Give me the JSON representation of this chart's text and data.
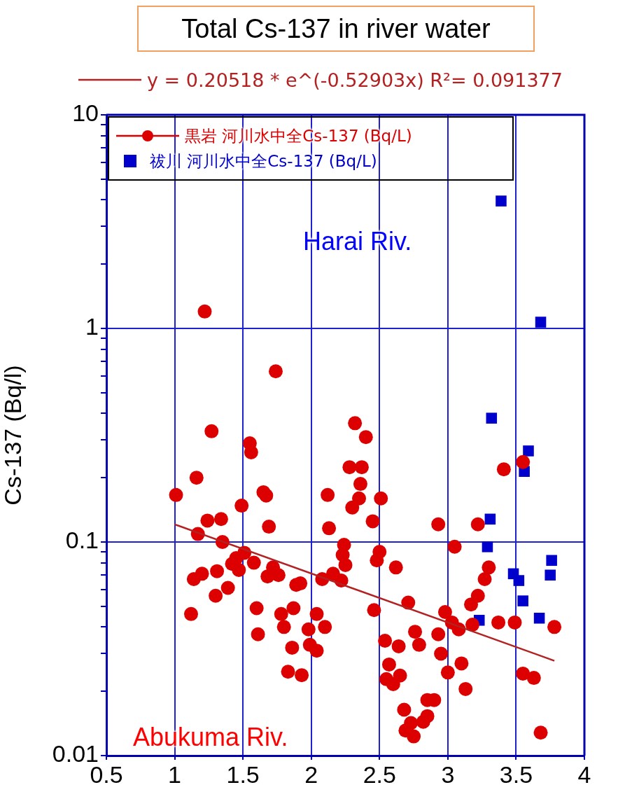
{
  "chart_data": {
    "type": "scatter",
    "title": "Total Cs-137 in river water",
    "ylabel": "Cs-137 (Bq/l)",
    "annotations": [
      "Harai Riv.",
      "Abukuma Riv."
    ],
    "log": "y",
    "grid": true,
    "legend": "top left",
    "xlim": [
      0.5,
      4
    ],
    "xticks": [
      0.5,
      1,
      1.5,
      2,
      2.5,
      3,
      3.5,
      4
    ],
    "ylim": [
      0.01,
      10
    ],
    "yticks": [
      0.01,
      {
        "value": 0.02,
        "label": null
      },
      {
        "value": 0.03,
        "label": null
      },
      {
        "value": 0.04,
        "label": null
      },
      {
        "value": 0.05,
        "label": null
      },
      {
        "value": 0.06,
        "label": null
      },
      {
        "value": 0.07,
        "label": null
      },
      {
        "value": 0.08,
        "label": null
      },
      {
        "value": 0.09,
        "label": null
      },
      0.1,
      {
        "value": 0.2,
        "label": null
      },
      {
        "value": 0.3,
        "label": null
      },
      {
        "value": 0.4,
        "label": null
      },
      {
        "value": 0.5,
        "label": null
      },
      {
        "value": 0.6,
        "label": null
      },
      {
        "value": 0.7,
        "label": null
      },
      {
        "value": 0.8,
        "label": null
      },
      {
        "value": 0.9,
        "label": null
      },
      1,
      {
        "value": 2,
        "label": null
      },
      {
        "value": 3,
        "label": null
      },
      {
        "value": 4,
        "label": null
      },
      {
        "value": 5,
        "label": null
      },
      {
        "value": 6,
        "label": null
      },
      {
        "value": 7,
        "label": null
      },
      {
        "value": 8,
        "label": null
      },
      {
        "value": 9,
        "label": null
      },
      10
    ],
    "series": [
      {
        "name": "黒岩 河川水中全Cs-137 (Bq/L)",
        "color": "#dd0000",
        "marker": "circle",
        "x": [
          1.22,
          1.74,
          1.27,
          1.55,
          1.56,
          1.16,
          1.01,
          1.65,
          1.67,
          1.49,
          2.12,
          1.24,
          1.34,
          1.69,
          2.13,
          1.17,
          1.35,
          2.32,
          2.4,
          2.28,
          2.37,
          2.36,
          2.35,
          2.3,
          2.51,
          2.45,
          2.93,
          3.22,
          3.41,
          3.55,
          3.05,
          2.24,
          2.5,
          2.48,
          1.45,
          1.51,
          1.58,
          1.42,
          1.47,
          1.72,
          1.68,
          1.76,
          2.08,
          2.16,
          2.22,
          2.23,
          2.25,
          1.14,
          1.2,
          1.31,
          1.39,
          1.3,
          1.89,
          1.92,
          1.12,
          1.6,
          1.61,
          1.78,
          1.8,
          1.87,
          1.86,
          1.98,
          2.04,
          2.1,
          1.99,
          2.04,
          1.83,
          1.93,
          2.62,
          3.3,
          3.27,
          3.22,
          3.17,
          2.46,
          2.71,
          2.98,
          3.03,
          3.08,
          3.18,
          3.37,
          3.49,
          3.78,
          2.76,
          2.93,
          2.54,
          2.64,
          2.79,
          2.95,
          3.1,
          2.57,
          3.0,
          2.65,
          2.55,
          2.6,
          3.55,
          3.63,
          3.13,
          2.85,
          2.9,
          2.85,
          2.68,
          2.73,
          2.69,
          2.75,
          2.82,
          3.68
        ],
        "values": [
          1.2,
          0.63,
          0.33,
          0.29,
          0.263,
          0.2,
          0.166,
          0.171,
          0.165,
          0.148,
          0.166,
          0.126,
          0.128,
          0.118,
          0.116,
          0.109,
          0.1,
          0.36,
          0.31,
          0.224,
          0.224,
          0.187,
          0.16,
          0.145,
          0.16,
          0.125,
          0.121,
          0.121,
          0.219,
          0.237,
          0.095,
          0.097,
          0.09,
          0.082,
          0.084,
          0.089,
          0.08,
          0.079,
          0.074,
          0.076,
          0.069,
          0.07,
          0.067,
          0.071,
          0.066,
          0.087,
          0.078,
          0.067,
          0.071,
          0.073,
          0.061,
          0.056,
          0.063,
          0.064,
          0.046,
          0.049,
          0.037,
          0.046,
          0.04,
          0.049,
          0.032,
          0.039,
          0.046,
          0.04,
          0.033,
          0.031,
          0.0247,
          0.0238,
          0.076,
          0.076,
          0.067,
          0.056,
          0.051,
          0.048,
          0.052,
          0.047,
          0.042,
          0.039,
          0.041,
          0.042,
          0.042,
          0.04,
          0.038,
          0.037,
          0.0345,
          0.0325,
          0.033,
          0.03,
          0.027,
          0.0267,
          0.0245,
          0.0237,
          0.0228,
          0.0216,
          0.0242,
          0.0231,
          0.0205,
          0.0182,
          0.0182,
          0.0153,
          0.0164,
          0.0142,
          0.0131,
          0.0123,
          0.0144,
          0.0128
        ]
      },
      {
        "name": "祓川 河川水中全Cs-137 (Bq/L)",
        "color": "#0000cc",
        "marker": "square",
        "x": [
          3.39,
          3.68,
          3.32,
          3.59,
          3.56,
          3.31,
          3.29,
          3.48,
          3.52,
          3.76,
          3.75,
          3.55,
          3.23,
          3.67
        ],
        "values": [
          3.95,
          1.07,
          0.38,
          0.267,
          0.214,
          0.128,
          0.095,
          0.071,
          0.066,
          0.082,
          0.07,
          0.053,
          0.043,
          0.044
        ]
      },
      {
        "type": "line",
        "name": "y = 0.20518 * e^(-0.52903x)   R²= 0.091377",
        "color": "#b22222",
        "marker": "none",
        "x": [
          1,
          3.78
        ],
        "values": [
          0.1209,
          0.0278
        ]
      }
    ]
  }
}
